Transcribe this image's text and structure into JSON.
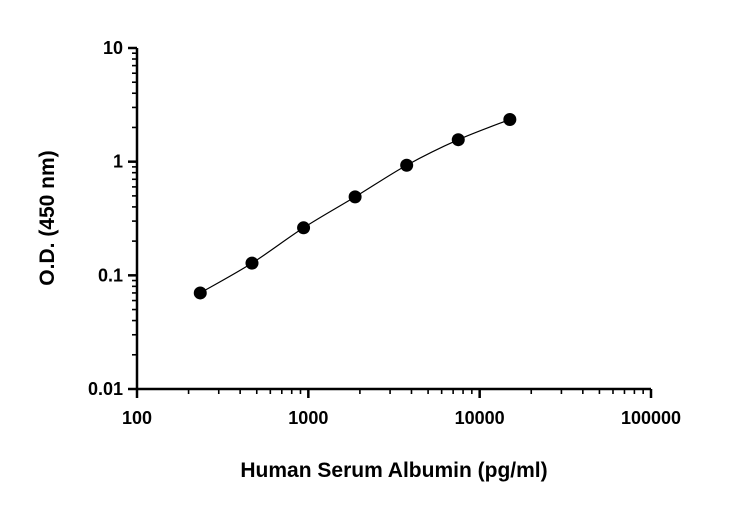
{
  "chart_data": {
    "type": "scatter",
    "title": "",
    "xlabel": "Human Serum Albumin (pg/ml)",
    "ylabel": "O.D. (450 nm)",
    "xscale": "log",
    "yscale": "log",
    "xlim": [
      100,
      100000
    ],
    "ylim": [
      0.01,
      10
    ],
    "x_ticks": [
      {
        "value": 100,
        "label": "100"
      },
      {
        "value": 1000,
        "label": "1000"
      },
      {
        "value": 10000,
        "label": "10000"
      },
      {
        "value": 100000,
        "label": "100000"
      }
    ],
    "y_ticks": [
      {
        "value": 10,
        "label": "10"
      },
      {
        "value": 1,
        "label": "1"
      },
      {
        "value": 0.1,
        "label": "0.1"
      },
      {
        "value": 0.01,
        "label": "0.01"
      }
    ],
    "grid": false,
    "legend": "none",
    "fit_curve": true,
    "series": [
      {
        "color": "#000000",
        "x": [
          234,
          469,
          938,
          1875,
          3750,
          7500,
          15000
        ],
        "y": [
          0.07,
          0.128,
          0.262,
          0.49,
          0.93,
          1.56,
          2.35
        ]
      }
    ]
  }
}
